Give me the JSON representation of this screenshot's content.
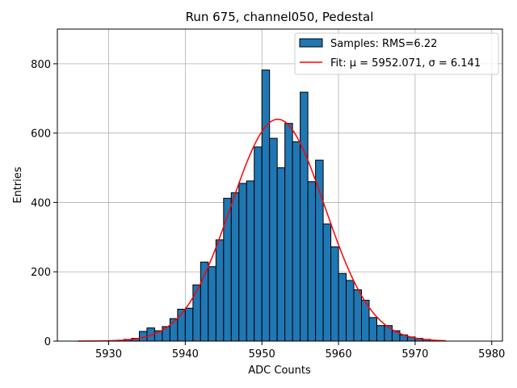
{
  "chart_data": {
    "type": "bar",
    "title": "Run 675, channel050, Pedestal",
    "xlabel": "ADC Counts",
    "ylabel": "Entries",
    "xlim": [
      5923.3,
      5981.4
    ],
    "ylim": [
      0,
      900
    ],
    "xticks": [
      5930,
      5940,
      5950,
      5960,
      5970,
      5980
    ],
    "yticks": [
      0,
      200,
      400,
      600,
      800
    ],
    "grid": true,
    "legend_position": "top-right",
    "histogram": {
      "name": "Samples: RMS=6.22",
      "color": "#1f77b4",
      "edgecolor": "#000000",
      "bin_width": 1,
      "bin_starts": [
        5926,
        5927,
        5928,
        5929,
        5930,
        5931,
        5932,
        5933,
        5934,
        5935,
        5936,
        5937,
        5938,
        5939,
        5940,
        5941,
        5942,
        5943,
        5944,
        5945,
        5946,
        5947,
        5948,
        5949,
        5950,
        5951,
        5952,
        5953,
        5954,
        5955,
        5956,
        5957,
        5958,
        5959,
        5960,
        5961,
        5962,
        5963,
        5964,
        5965,
        5966,
        5967,
        5968,
        5969,
        5970,
        5971,
        5972,
        5973
      ],
      "counts": [
        0,
        0,
        0,
        0,
        0,
        2,
        5,
        8,
        28,
        38,
        30,
        42,
        65,
        92,
        95,
        162,
        228,
        215,
        292,
        412,
        428,
        455,
        462,
        560,
        782,
        585,
        500,
        628,
        575,
        718,
        460,
        522,
        338,
        272,
        195,
        175,
        148,
        118,
        68,
        45,
        45,
        30,
        18,
        12,
        8,
        5,
        2,
        0
      ]
    },
    "fit": {
      "name": "Fit: μ = 5952.071, σ = 6.141",
      "color": "#ff0000",
      "mu": 5952.071,
      "sigma": 6.141,
      "amplitude": 640,
      "x_range": [
        5926,
        5974
      ]
    }
  }
}
